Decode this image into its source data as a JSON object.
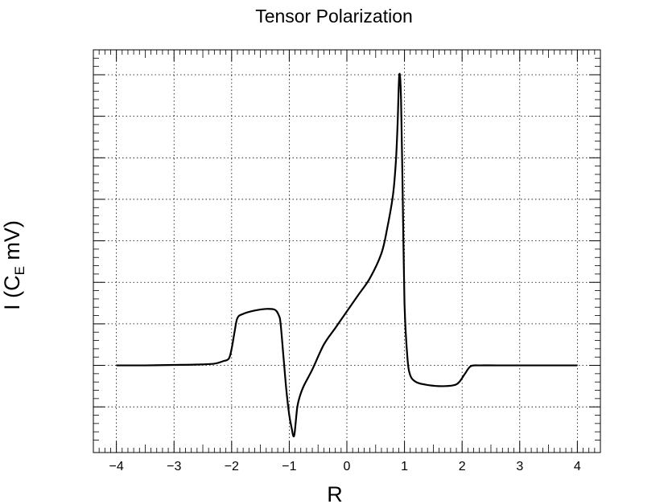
{
  "chart_data": {
    "type": "line",
    "title": "Tensor Polarization",
    "xlabel": "R",
    "ylabel": {
      "main": "I (C",
      "subscript": "E",
      "suffix": " mV)"
    },
    "xlim": [
      -4.4,
      4.4
    ],
    "ylim": [
      -1.05,
      3.8
    ],
    "x_ticks": [
      "−4",
      "−3",
      "−2",
      "−1",
      "0",
      "1",
      "2",
      "3",
      "4"
    ],
    "x_tick_values": [
      -4,
      -3,
      -2,
      -1,
      0,
      1,
      2,
      3,
      4
    ],
    "y_tick_values": [
      -0.5,
      0,
      0.5,
      1,
      1.5,
      2,
      2.5,
      3,
      3.5
    ],
    "y_tick_labels_shown": false,
    "grid": true,
    "grid_style": "dotted",
    "series": [
      {
        "color": "#000000",
        "x": [
          -4.0,
          -3.5,
          -3.0,
          -2.6,
          -2.3,
          -2.15,
          -2.05,
          -2.0,
          -1.95,
          -1.9,
          -1.8,
          -1.6,
          -1.4,
          -1.25,
          -1.18,
          -1.15,
          -1.1,
          -1.05,
          -1.0,
          -0.96,
          -0.93,
          -0.91,
          -0.89,
          -0.86,
          -0.82,
          -0.75,
          -0.6,
          -0.4,
          -0.2,
          0.0,
          0.2,
          0.4,
          0.6,
          0.7,
          0.8,
          0.85,
          0.88,
          0.91,
          0.94,
          0.97,
          1.0,
          1.05,
          1.1,
          1.2,
          1.35,
          1.6,
          1.85,
          1.95,
          2.05,
          2.15,
          2.3,
          2.6,
          3.0,
          3.5,
          4.0
        ],
        "y": [
          0.0,
          0.0,
          0.005,
          0.01,
          0.02,
          0.05,
          0.08,
          0.2,
          0.4,
          0.57,
          0.62,
          0.66,
          0.68,
          0.67,
          0.6,
          0.5,
          0.1,
          -0.3,
          -0.6,
          -0.75,
          -0.85,
          -0.83,
          -0.7,
          -0.5,
          -0.38,
          -0.25,
          -0.05,
          0.25,
          0.45,
          0.65,
          0.85,
          1.05,
          1.35,
          1.65,
          2.05,
          2.45,
          2.9,
          3.5,
          3.2,
          2.0,
          0.75,
          0.1,
          -0.12,
          -0.2,
          -0.23,
          -0.25,
          -0.24,
          -0.2,
          -0.1,
          -0.01,
          0.0,
          0.0,
          0.0,
          0.0,
          0.0
        ]
      }
    ]
  }
}
